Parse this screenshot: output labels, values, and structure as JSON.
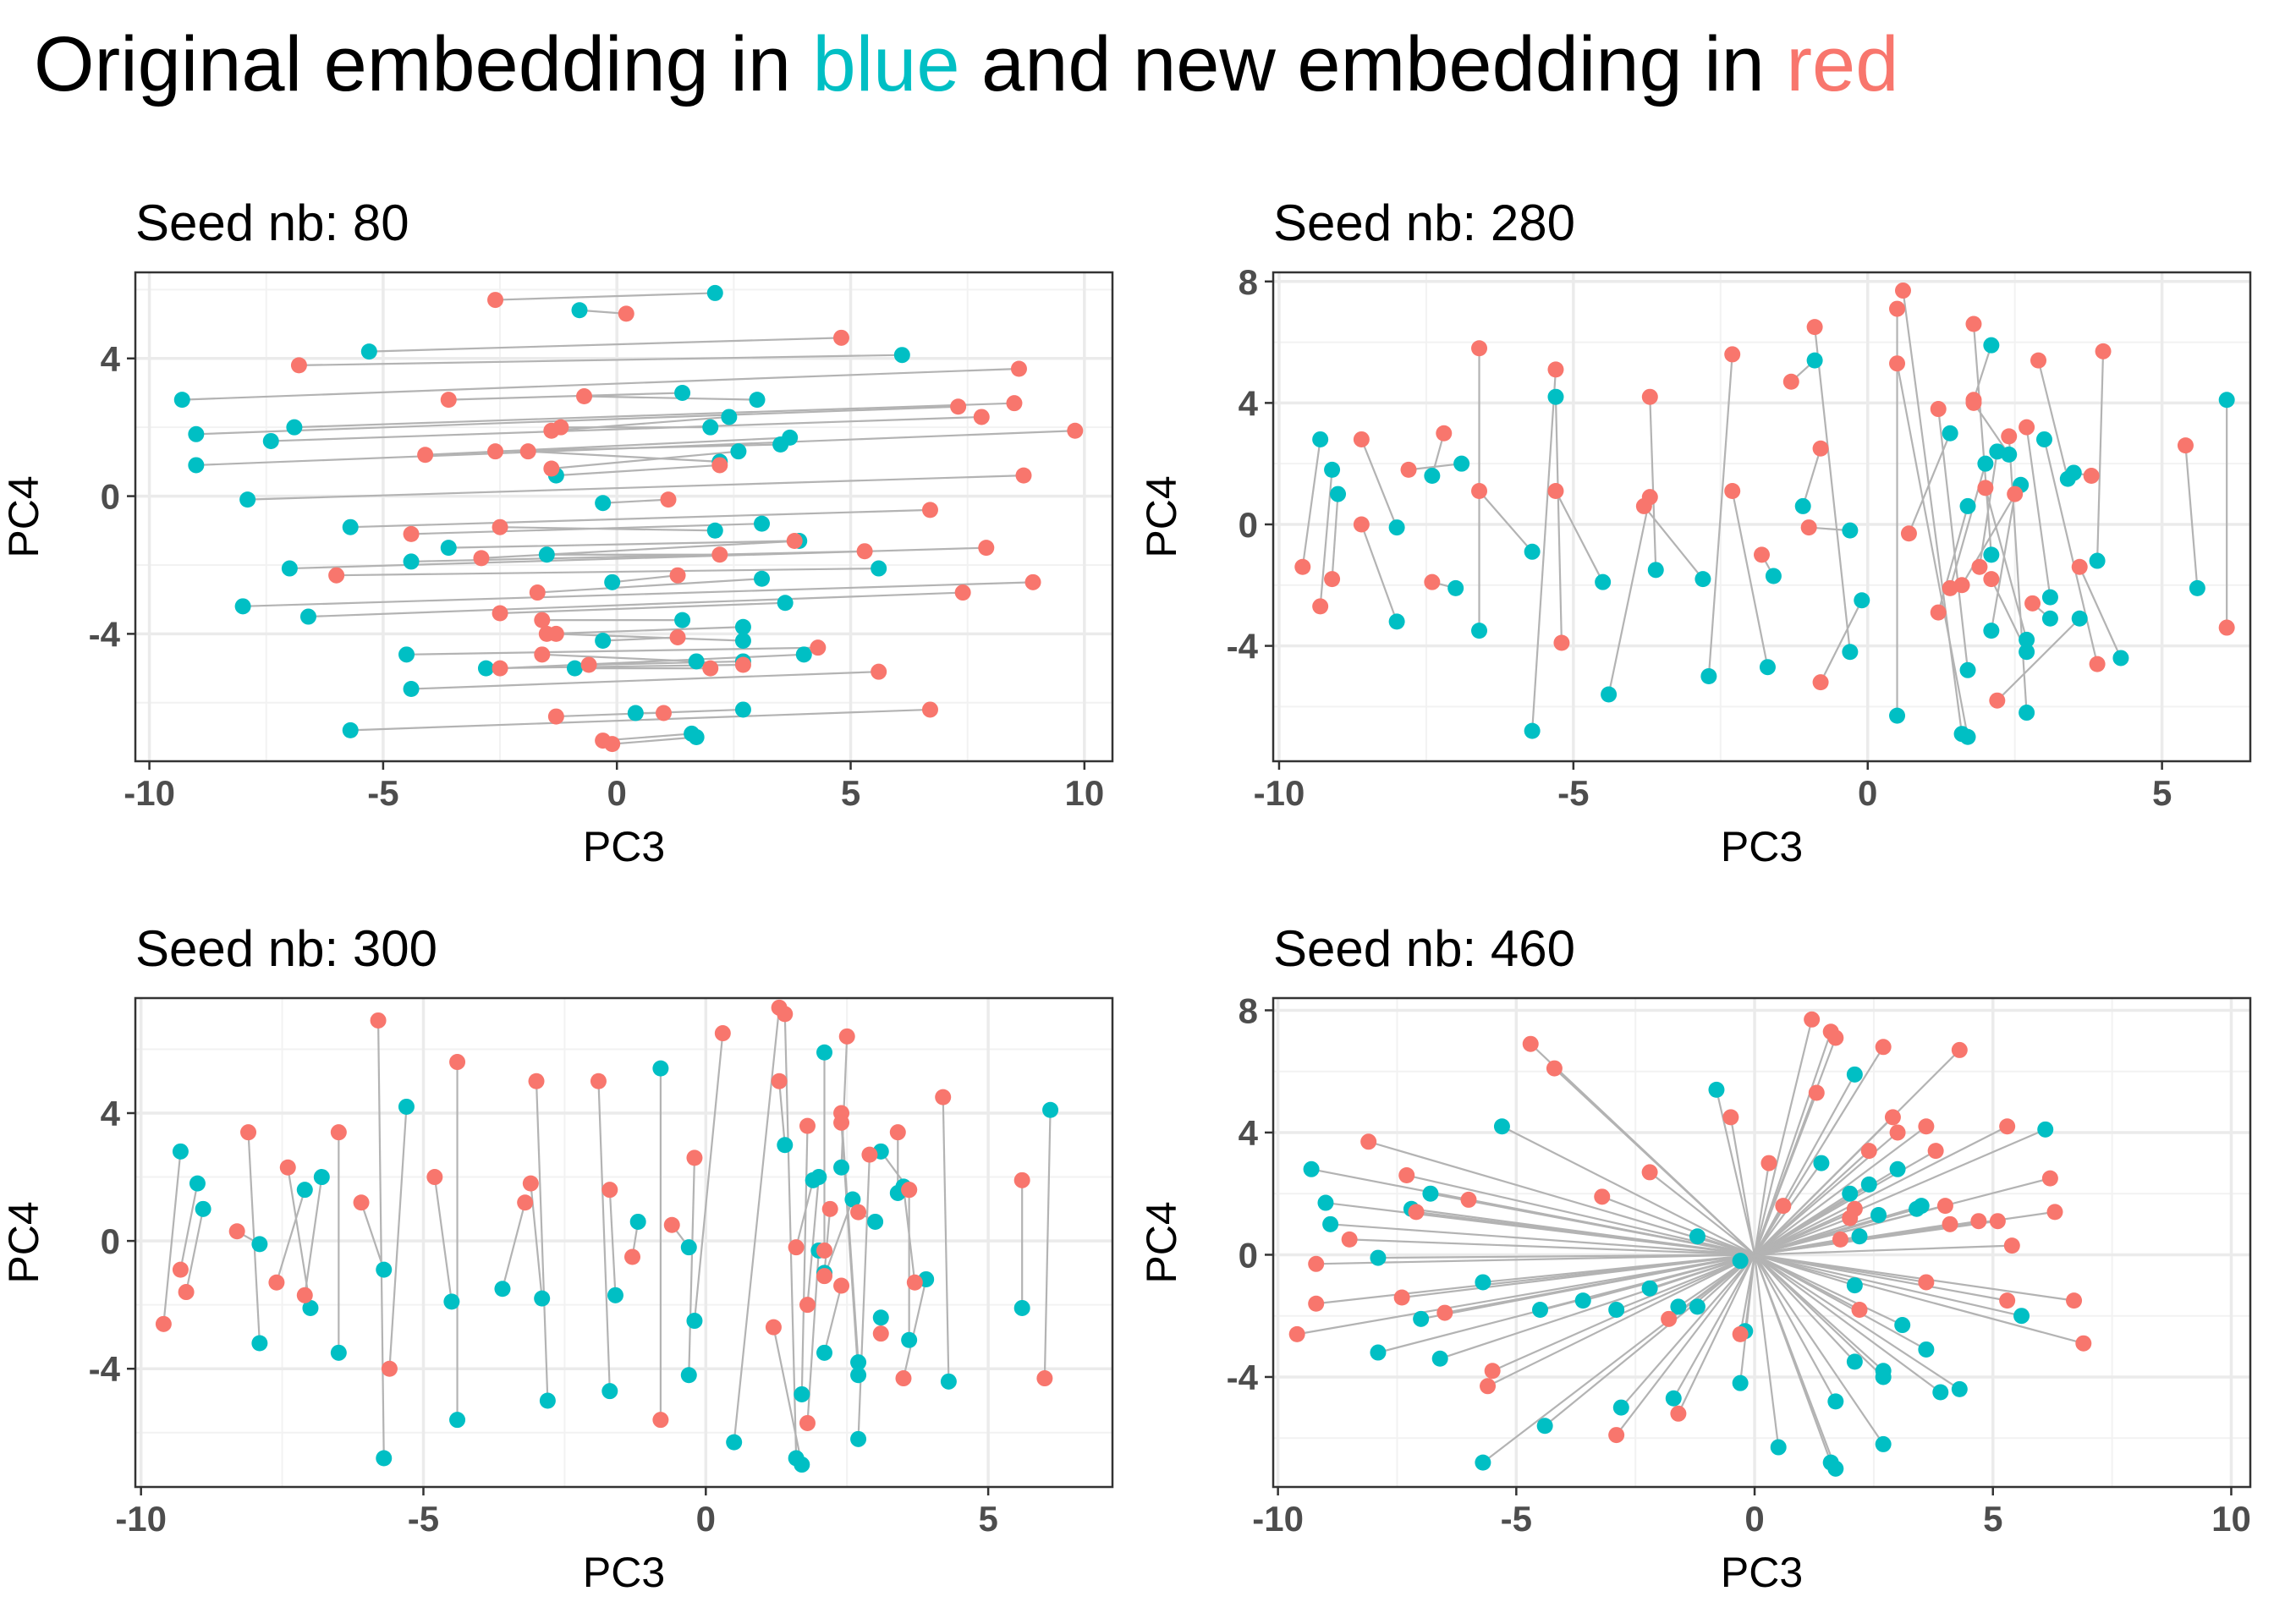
{
  "title": {
    "part1": "Original embedding in ",
    "blue_word": "blue",
    "part2": " and new embedding in ",
    "red_word": "red"
  },
  "colors": {
    "original": "#00bfc4",
    "new": "#f8766d",
    "segment": "#b3b3b3"
  },
  "chart_data": [
    {
      "type": "scatter",
      "title": "Seed nb: 80",
      "xlabel": "PC3",
      "ylabel": "PC4",
      "xlim": [
        -10.3,
        10.6
      ],
      "ylim": [
        -7.7,
        6.5
      ],
      "xticks": [
        -10,
        -5,
        0,
        5,
        10
      ],
      "yticks": [
        -4,
        0,
        4
      ],
      "grid": true,
      "links": [
        [
          2.1,
          5.9,
          -2.6,
          5.7
        ],
        [
          -0.8,
          5.4,
          0.2,
          5.3
        ],
        [
          -5.3,
          4.2,
          4.8,
          4.6
        ],
        [
          6.1,
          4.1,
          -6.8,
          3.8
        ],
        [
          -9.3,
          2.8,
          8.6,
          3.7
        ],
        [
          1.4,
          3.0,
          -3.6,
          2.8
        ],
        [
          3.0,
          2.8,
          -0.7,
          2.9
        ],
        [
          -9.0,
          1.8,
          7.3,
          2.6
        ],
        [
          -6.9,
          2.0,
          8.5,
          2.7
        ],
        [
          2.4,
          2.3,
          -1.4,
          1.9
        ],
        [
          -7.4,
          1.6,
          7.8,
          2.3
        ],
        [
          2.0,
          2.0,
          -1.2,
          2.0
        ],
        [
          3.7,
          1.7,
          -4.1,
          1.2
        ],
        [
          3.5,
          1.5,
          -2.6,
          1.3
        ],
        [
          -9.0,
          0.9,
          9.8,
          1.9
        ],
        [
          2.2,
          1.0,
          -1.9,
          1.3
        ],
        [
          2.6,
          1.3,
          -1.4,
          0.8
        ],
        [
          -1.3,
          0.6,
          2.2,
          0.9
        ],
        [
          -7.9,
          -0.1,
          8.7,
          0.6
        ],
        [
          -0.3,
          -0.2,
          1.1,
          -0.1
        ],
        [
          -5.7,
          -0.9,
          6.7,
          -0.4
        ],
        [
          3.1,
          -0.8,
          -4.4,
          -1.1
        ],
        [
          2.1,
          -1.0,
          -2.5,
          -0.9
        ],
        [
          -3.6,
          -1.5,
          3.8,
          -1.3
        ],
        [
          -7.0,
          -2.1,
          7.9,
          -1.5
        ],
        [
          -4.4,
          -1.9,
          5.3,
          -1.6
        ],
        [
          3.9,
          -1.3,
          -2.9,
          -1.8
        ],
        [
          -1.5,
          -1.7,
          2.2,
          -1.7
        ],
        [
          5.6,
          -2.1,
          -6.0,
          -2.3
        ],
        [
          -0.1,
          -2.5,
          1.3,
          -2.3
        ],
        [
          3.1,
          -2.4,
          -1.7,
          -2.8
        ],
        [
          -8.0,
          -3.2,
          8.9,
          -2.5
        ],
        [
          3.6,
          -3.1,
          -2.5,
          -3.4
        ],
        [
          -6.6,
          -3.5,
          7.4,
          -2.8
        ],
        [
          1.4,
          -3.6,
          -1.6,
          -3.6
        ],
        [
          2.7,
          -3.8,
          -1.5,
          -4.0
        ],
        [
          -0.3,
          -4.2,
          1.3,
          -4.1
        ],
        [
          2.7,
          -4.2,
          -1.3,
          -4.0
        ],
        [
          -4.5,
          -4.6,
          4.3,
          -4.4
        ],
        [
          1.7,
          -4.8,
          -1.6,
          -4.6
        ],
        [
          -4.4,
          -5.6,
          5.6,
          -5.1
        ],
        [
          2.7,
          -4.8,
          -0.6,
          -4.9
        ],
        [
          -2.8,
          -5.0,
          2.7,
          -4.9
        ],
        [
          4.0,
          -4.6,
          -2.5,
          -5.0
        ],
        [
          -0.9,
          -5.0,
          2.0,
          -5.0
        ],
        [
          -5.7,
          -6.8,
          6.7,
          -6.2
        ],
        [
          2.7,
          -6.2,
          -1.3,
          -6.4
        ],
        [
          0.4,
          -6.3,
          1.0,
          -6.3
        ],
        [
          1.6,
          -6.9,
          -0.3,
          -7.1
        ],
        [
          1.7,
          -7.0,
          -0.1,
          -7.2
        ]
      ]
    },
    {
      "type": "scatter",
      "title": "Seed nb: 280",
      "xlabel": "PC3",
      "ylabel": "PC4",
      "xlim": [
        -10.1,
        6.5
      ],
      "ylim": [
        -7.8,
        8.3
      ],
      "xticks": [
        -10,
        -5,
        0,
        5
      ],
      "yticks": [
        -4,
        0,
        4,
        8
      ],
      "grid": true,
      "links": [
        [
          -9.3,
          2.8,
          -9.6,
          -1.4
        ],
        [
          -9.1,
          1.8,
          -9.3,
          -2.7
        ],
        [
          -9.0,
          1.0,
          -9.1,
          -1.8
        ],
        [
          -8.0,
          -0.1,
          -8.6,
          2.8
        ],
        [
          -8.0,
          -3.2,
          -8.6,
          0.0
        ],
        [
          -7.0,
          -2.1,
          -7.4,
          -1.9
        ],
        [
          -7.4,
          1.6,
          -7.2,
          3.0
        ],
        [
          -6.9,
          2.0,
          -7.8,
          1.8
        ],
        [
          -6.6,
          -3.5,
          -6.6,
          5.8
        ],
        [
          -5.7,
          -0.9,
          -6.6,
          1.1
        ],
        [
          -5.7,
          -6.8,
          -5.3,
          5.1
        ],
        [
          -5.3,
          4.2,
          -5.2,
          -3.9
        ],
        [
          -4.5,
          -1.9,
          -5.3,
          1.1
        ],
        [
          -4.4,
          -5.6,
          -3.7,
          0.9
        ],
        [
          -3.6,
          -1.5,
          -3.7,
          4.2
        ],
        [
          -2.8,
          -1.8,
          -3.8,
          0.6
        ],
        [
          -2.7,
          -5.0,
          -2.3,
          5.6
        ],
        [
          -1.7,
          -4.7,
          -2.3,
          1.1
        ],
        [
          -1.6,
          -1.7,
          -1.8,
          -1.0
        ],
        [
          -1.1,
          0.6,
          -0.8,
          2.5
        ],
        [
          -0.9,
          5.4,
          -1.3,
          4.7
        ],
        [
          -0.3,
          -0.2,
          -1.0,
          -0.1
        ],
        [
          -0.3,
          -4.2,
          -0.9,
          6.5
        ],
        [
          -0.1,
          -2.5,
          -0.8,
          -5.2
        ],
        [
          0.5,
          -6.3,
          0.5,
          7.1
        ],
        [
          1.6,
          -6.9,
          0.6,
          7.7
        ],
        [
          1.7,
          -7.0,
          0.5,
          5.3
        ],
        [
          1.7,
          -4.8,
          1.2,
          3.8
        ],
        [
          1.7,
          0.6,
          1.2,
          -2.9
        ],
        [
          2.0,
          2.0,
          1.4,
          -2.1
        ],
        [
          2.1,
          5.9,
          1.8,
          4.1
        ],
        [
          2.1,
          -1.0,
          1.8,
          6.6
        ],
        [
          2.4,
          2.3,
          1.8,
          4.0
        ],
        [
          2.7,
          -3.8,
          2.0,
          1.2
        ],
        [
          2.7,
          -4.2,
          2.1,
          -1.8
        ],
        [
          2.7,
          -6.2,
          2.4,
          2.9
        ],
        [
          2.1,
          -3.5,
          2.5,
          1.0
        ],
        [
          3.1,
          -2.4,
          2.7,
          3.2
        ],
        [
          3.4,
          1.5,
          2.9,
          5.4
        ],
        [
          3.1,
          -3.1,
          2.8,
          -2.6
        ],
        [
          3.5,
          1.7,
          3.8,
          1.6
        ],
        [
          3.0,
          2.8,
          3.9,
          -4.6
        ],
        [
          3.9,
          -1.2,
          4.0,
          5.7
        ],
        [
          4.3,
          -4.4,
          3.6,
          -1.4
        ],
        [
          5.6,
          -2.1,
          5.4,
          2.6
        ],
        [
          6.1,
          4.1,
          6.1,
          -3.4
        ],
        [
          3.6,
          -3.1,
          2.2,
          -5.8
        ],
        [
          2.6,
          1.3,
          1.6,
          -2.0
        ],
        [
          1.4,
          3.0,
          0.7,
          -0.3
        ],
        [
          2.2,
          2.4,
          1.9,
          -1.4
        ]
      ]
    },
    {
      "type": "scatter",
      "title": "Seed nb: 300",
      "xlabel": "PC3",
      "ylabel": "PC4",
      "xlim": [
        -10.1,
        7.2
      ],
      "ylim": [
        -7.7,
        7.6
      ],
      "xticks": [
        -10,
        -5,
        0,
        5
      ],
      "yticks": [
        -4,
        0,
        4
      ],
      "grid": true,
      "links": [
        [
          -9.3,
          2.8,
          -9.6,
          -2.6
        ],
        [
          -9.0,
          1.8,
          -9.3,
          -0.9
        ],
        [
          -8.9,
          1.0,
          -9.2,
          -1.6
        ],
        [
          -7.9,
          -0.1,
          -8.3,
          0.3
        ],
        [
          -7.9,
          -3.2,
          -8.1,
          3.4
        ],
        [
          -7.0,
          -2.1,
          -7.4,
          2.3
        ],
        [
          -7.1,
          1.6,
          -7.6,
          -1.3
        ],
        [
          -6.8,
          2.0,
          -7.1,
          -1.7
        ],
        [
          -6.5,
          -3.5,
          -6.5,
          3.4
        ],
        [
          -5.7,
          -6.8,
          -5.8,
          6.9
        ],
        [
          -5.7,
          -0.9,
          -6.1,
          1.2
        ],
        [
          -5.3,
          4.2,
          -5.6,
          -4.0
        ],
        [
          -4.4,
          -5.6,
          -4.4,
          5.6
        ],
        [
          -4.5,
          -1.9,
          -4.8,
          2.0
        ],
        [
          -3.6,
          -1.5,
          -3.2,
          1.2
        ],
        [
          -2.8,
          -5.0,
          -3.0,
          5.0
        ],
        [
          -2.9,
          -1.8,
          -3.1,
          1.8
        ],
        [
          -1.7,
          -4.7,
          -1.9,
          5.0
        ],
        [
          -1.6,
          -1.7,
          -1.7,
          1.6
        ],
        [
          -1.2,
          0.6,
          -1.3,
          -0.5
        ],
        [
          -0.8,
          5.4,
          -0.8,
          -5.6
        ],
        [
          -0.3,
          -0.2,
          -0.6,
          0.5
        ],
        [
          -0.3,
          -4.2,
          -0.2,
          2.6
        ],
        [
          -0.2,
          -2.5,
          0.3,
          6.5
        ],
        [
          0.5,
          -6.3,
          1.3,
          7.3
        ],
        [
          1.4,
          3.0,
          1.3,
          5.0
        ],
        [
          1.6,
          -6.8,
          1.4,
          7.1
        ],
        [
          1.7,
          -7.0,
          1.2,
          -2.7
        ],
        [
          1.7,
          -4.8,
          1.8,
          3.6
        ],
        [
          2.0,
          2.0,
          1.8,
          -2.0
        ],
        [
          2.1,
          5.9,
          2.1,
          -0.3
        ],
        [
          2.1,
          -1.0,
          2.2,
          1.0
        ],
        [
          2.4,
          2.3,
          2.5,
          6.4
        ],
        [
          2.7,
          -3.8,
          2.4,
          4.0
        ],
        [
          2.7,
          -4.2,
          2.4,
          3.7
        ],
        [
          2.7,
          -6.2,
          2.9,
          2.7
        ],
        [
          2.1,
          -3.5,
          2.4,
          -1.4
        ],
        [
          3.1,
          -2.4,
          3.1,
          -2.9
        ],
        [
          3.4,
          1.5,
          3.4,
          3.4
        ],
        [
          3.1,
          2.8,
          3.6,
          1.6
        ],
        [
          3.5,
          1.7,
          3.7,
          -1.3
        ],
        [
          3.6,
          -3.1,
          3.6,
          1.6
        ],
        [
          3.9,
          -1.2,
          3.5,
          -4.3
        ],
        [
          4.3,
          -4.4,
          4.2,
          4.5
        ],
        [
          5.6,
          -2.1,
          5.6,
          1.9
        ],
        [
          6.1,
          4.1,
          6.0,
          -4.3
        ],
        [
          2.6,
          1.3,
          2.1,
          -1.1
        ],
        [
          2.0,
          -0.3,
          1.8,
          -5.7
        ],
        [
          3.0,
          0.6,
          2.7,
          0.9
        ],
        [
          1.9,
          1.9,
          1.6,
          -0.2
        ]
      ]
    },
    {
      "type": "scatter",
      "title": "Seed nb: 460",
      "xlabel": "PC3",
      "ylabel": "PC4",
      "xlim": [
        -10.1,
        10.4
      ],
      "ylim": [
        -7.6,
        8.4
      ],
      "xticks": [
        -10,
        -5,
        0,
        5,
        10
      ],
      "yticks": [
        -4,
        0,
        4,
        8
      ],
      "grid": true,
      "origin": [
        0,
        0
      ],
      "original": [
        [
          -9.3,
          2.8
        ],
        [
          -9.0,
          1.7
        ],
        [
          -8.9,
          1.0
        ],
        [
          -7.9,
          -0.1
        ],
        [
          -7.9,
          -3.2
        ],
        [
          -7.0,
          -2.1
        ],
        [
          -7.2,
          1.5
        ],
        [
          -6.8,
          2.0
        ],
        [
          -6.6,
          -3.4
        ],
        [
          -5.7,
          -6.8
        ],
        [
          -5.7,
          -0.9
        ],
        [
          -5.3,
          4.2
        ],
        [
          -4.5,
          -1.8
        ],
        [
          -4.4,
          -5.6
        ],
        [
          -3.6,
          -1.5
        ],
        [
          -2.8,
          -5.0
        ],
        [
          -2.9,
          -1.8
        ],
        [
          -1.7,
          -4.7
        ],
        [
          -1.6,
          -1.7
        ],
        [
          -1.2,
          0.6
        ],
        [
          -0.8,
          5.4
        ],
        [
          -0.3,
          -0.2
        ],
        [
          -0.3,
          -4.2
        ],
        [
          -0.2,
          -2.5
        ],
        [
          0.5,
          -6.3
        ],
        [
          1.4,
          3.0
        ],
        [
          1.6,
          -6.8
        ],
        [
          1.7,
          -7.0
        ],
        [
          1.7,
          -4.8
        ],
        [
          2.0,
          2.0
        ],
        [
          2.1,
          5.9
        ],
        [
          2.1,
          -1.0
        ],
        [
          2.4,
          2.3
        ],
        [
          2.7,
          -3.8
        ],
        [
          2.7,
          -4.0
        ],
        [
          2.7,
          -6.2
        ],
        [
          2.1,
          -3.5
        ],
        [
          3.1,
          -2.3
        ],
        [
          3.4,
          1.5
        ],
        [
          3.0,
          2.8
        ],
        [
          3.5,
          1.6
        ],
        [
          3.6,
          -3.1
        ],
        [
          3.9,
          -4.5
        ],
        [
          4.3,
          -4.4
        ],
        [
          5.6,
          -2.0
        ],
        [
          6.1,
          4.1
        ],
        [
          2.6,
          1.3
        ],
        [
          2.2,
          0.6
        ],
        [
          -1.2,
          -1.7
        ],
        [
          -2.2,
          -1.1
        ]
      ],
      "new": [
        [
          -9.6,
          -2.6
        ],
        [
          -9.2,
          -1.6
        ],
        [
          -9.2,
          -0.3
        ],
        [
          -8.5,
          0.5
        ],
        [
          -8.1,
          3.7
        ],
        [
          -7.4,
          -1.4
        ],
        [
          -7.3,
          2.6
        ],
        [
          -7.1,
          1.4
        ],
        [
          -6.5,
          -1.9
        ],
        [
          -6.0,
          1.8
        ],
        [
          -5.6,
          -4.3
        ],
        [
          -5.5,
          -3.8
        ],
        [
          -4.7,
          6.9
        ],
        [
          -4.2,
          6.1
        ],
        [
          -3.2,
          1.9
        ],
        [
          -2.9,
          -5.9
        ],
        [
          -2.2,
          2.7
        ],
        [
          -1.8,
          -2.1
        ],
        [
          -1.6,
          -5.2
        ],
        [
          -0.5,
          4.5
        ],
        [
          -0.3,
          -2.6
        ],
        [
          0.3,
          3.0
        ],
        [
          0.6,
          1.6
        ],
        [
          1.2,
          7.7
        ],
        [
          1.3,
          5.3
        ],
        [
          1.6,
          7.3
        ],
        [
          1.7,
          7.1
        ],
        [
          1.8,
          0.5
        ],
        [
          2.0,
          1.2
        ],
        [
          2.1,
          1.5
        ],
        [
          2.2,
          -1.8
        ],
        [
          2.4,
          3.4
        ],
        [
          2.7,
          6.8
        ],
        [
          2.9,
          4.5
        ],
        [
          3.0,
          4.0
        ],
        [
          3.6,
          4.2
        ],
        [
          3.6,
          -0.9
        ],
        [
          3.8,
          3.4
        ],
        [
          4.0,
          1.6
        ],
        [
          4.1,
          1.0
        ],
        [
          4.3,
          6.7
        ],
        [
          4.7,
          1.1
        ],
        [
          5.1,
          1.1
        ],
        [
          5.3,
          -1.5
        ],
        [
          5.3,
          4.2
        ],
        [
          5.4,
          0.3
        ],
        [
          6.2,
          2.5
        ],
        [
          6.3,
          1.4
        ],
        [
          6.7,
          -1.5
        ],
        [
          6.9,
          -2.9
        ]
      ]
    }
  ]
}
